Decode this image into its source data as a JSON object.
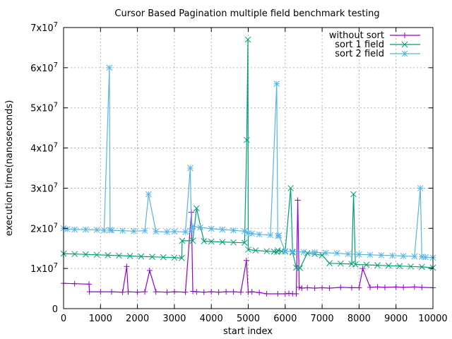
{
  "chart_data": {
    "type": "line",
    "title": "Cursor Based Pagination multiple field benchmark testing",
    "xlabel": "start index",
    "ylabel": "execution time(nanoseconds)",
    "xlim": [
      0,
      10000
    ],
    "ylim": [
      0,
      70000000
    ],
    "x_ticks": [
      0,
      1000,
      2000,
      3000,
      4000,
      5000,
      6000,
      7000,
      8000,
      9000,
      10000
    ],
    "x_tick_labels": [
      "0",
      "1000",
      "2000",
      "3000",
      "4000",
      "5000",
      "6000",
      "7000",
      "8000",
      "9000",
      "10000"
    ],
    "y_ticks": [
      0,
      10000000,
      20000000,
      30000000,
      40000000,
      50000000,
      60000000,
      70000000
    ],
    "y_tick_labels": [
      {
        "base": "0",
        "exp": ""
      },
      {
        "base": "1x10",
        "exp": "7"
      },
      {
        "base": "2x10",
        "exp": "7"
      },
      {
        "base": "3x10",
        "exp": "7"
      },
      {
        "base": "4x10",
        "exp": "7"
      },
      {
        "base": "5x10",
        "exp": "7"
      },
      {
        "base": "6x10",
        "exp": "7"
      },
      {
        "base": "7x10",
        "exp": "7"
      }
    ],
    "grid": true,
    "legend_position": "top-right",
    "series": [
      {
        "name": "without sort",
        "color": "#9400d3",
        "marker": "plus",
        "x": [
          0,
          300,
          690,
          700,
          1000,
          1300,
          1600,
          1710,
          1750,
          2000,
          2200,
          2330,
          2500,
          2800,
          3000,
          3300,
          3460,
          3500,
          3600,
          3800,
          4000,
          4200,
          4400,
          4600,
          4800,
          4950,
          5000,
          5100,
          5300,
          5500,
          5800,
          6000,
          6100,
          6200,
          6300,
          6340,
          6380,
          6450,
          6600,
          6800,
          7000,
          7200,
          7500,
          7800,
          8000,
          8100,
          8300,
          8500,
          8700,
          9000,
          9200,
          9500,
          9700,
          10000
        ],
        "y": [
          6300000,
          6200000,
          6100000,
          4200000,
          4200000,
          4200000,
          4100000,
          10500000,
          4200000,
          4100000,
          4200000,
          9500000,
          4200000,
          4100000,
          4200000,
          4100000,
          24000000,
          4300000,
          4200000,
          4100000,
          4200000,
          4100000,
          4200000,
          4200000,
          4100000,
          12000000,
          4100000,
          4200000,
          4000000,
          3700000,
          3700000,
          3700000,
          3800000,
          3700000,
          3700000,
          27000000,
          5300000,
          5100000,
          5200000,
          5100000,
          5200000,
          5100000,
          5300000,
          5200000,
          5200000,
          10000000,
          5300000,
          5400000,
          5300000,
          5400000,
          5300000,
          5400000,
          5300000,
          5200000
        ]
      },
      {
        "name": "sort 1 field",
        "color": "#009e73",
        "marker": "x",
        "x": [
          0,
          300,
          600,
          900,
          1200,
          1500,
          1800,
          2100,
          2400,
          2700,
          3000,
          3200,
          3210,
          3500,
          3600,
          3800,
          4000,
          4300,
          4600,
          4900,
          4960,
          4990,
          5000,
          5200,
          5500,
          5700,
          5780,
          5800,
          5900,
          6000,
          6150,
          6200,
          6300,
          6400,
          6600,
          6800,
          7000,
          7200,
          7500,
          7800,
          7850,
          7900,
          8200,
          8500,
          8800,
          9100,
          9400,
          9700,
          10000
        ],
        "y": [
          13700000,
          13600000,
          13500000,
          13400000,
          13300000,
          13200000,
          13100000,
          13000000,
          12900000,
          12800000,
          12700000,
          12600000,
          16900000,
          16900000,
          25000000,
          16800000,
          16700000,
          16600000,
          16500000,
          16400000,
          42000000,
          67000000,
          14700000,
          14500000,
          14300000,
          14200000,
          14100000,
          14500000,
          14300000,
          14200000,
          30000000,
          14000000,
          10200000,
          10100000,
          13800000,
          13600000,
          13300000,
          11300000,
          11200000,
          11100000,
          28500000,
          11000000,
          10900000,
          10800000,
          10700000,
          10600000,
          10500000,
          10400000,
          10200000
        ]
      },
      {
        "name": "sort 2 field",
        "color": "#56b4e9",
        "marker": "star",
        "x": [
          0,
          100,
          300,
          600,
          900,
          1100,
          1240,
          1260,
          1300,
          1600,
          1900,
          2200,
          2300,
          2500,
          2800,
          3000,
          3300,
          3430,
          3460,
          3500,
          3700,
          4000,
          4300,
          4600,
          4900,
          5000,
          5100,
          5300,
          5600,
          5770,
          5800,
          5830,
          6000,
          6200,
          6500,
          6800,
          7100,
          7400,
          7700,
          8000,
          8300,
          8600,
          8900,
          9200,
          9500,
          9660,
          9700,
          9800,
          10000
        ],
        "y": [
          20000000,
          19800000,
          19700000,
          19700000,
          19600000,
          19500000,
          60000000,
          19600000,
          19500000,
          19400000,
          19300000,
          19400000,
          28500000,
          19200000,
          19100000,
          19200000,
          19100000,
          35000000,
          19300000,
          20500000,
          20200000,
          19900000,
          19700000,
          19500000,
          19300000,
          18800000,
          18700000,
          18500000,
          18300000,
          56000000,
          18100000,
          18200000,
          14300000,
          14200000,
          14100000,
          14000000,
          13900000,
          13800000,
          13600000,
          13500000,
          13400000,
          13300000,
          13200000,
          13100000,
          13000000,
          30000000,
          12900000,
          12800000,
          12700000
        ]
      }
    ]
  }
}
